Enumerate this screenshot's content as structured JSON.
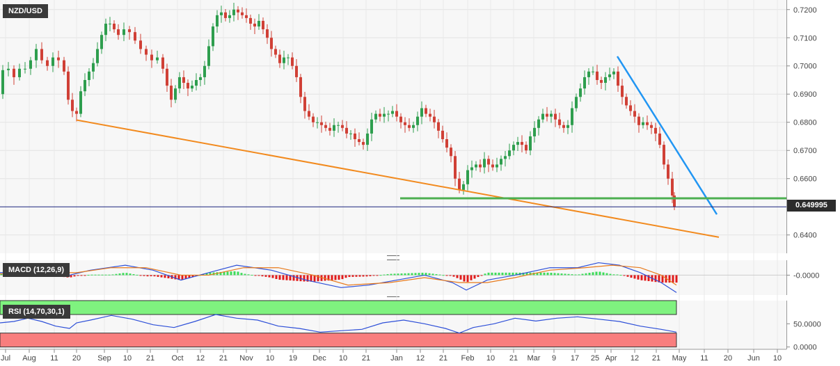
{
  "chart_data": {
    "type": "candlestick",
    "title": "NZD/USD",
    "last_price": "0.649995",
    "y_axis_labels": [
      "0.7200",
      "0.7100",
      "0.7000",
      "0.6900",
      "0.6800",
      "0.6700",
      "0.6600",
      "0.6400"
    ],
    "y_axis_values": [
      0.72,
      0.71,
      0.7,
      0.69,
      0.68,
      0.67,
      0.66,
      0.64
    ],
    "ylim": [
      0.6335,
      0.7234
    ],
    "x_axis_labels": [
      "Jul",
      "Aug",
      "11",
      "20",
      "Sep",
      "10",
      "21",
      "Oct",
      "12",
      "21",
      "Nov",
      "10",
      "19",
      "Dec",
      "10",
      "21",
      "Jan",
      "12",
      "21",
      "Feb",
      "10",
      "21",
      "Mar",
      "9",
      "17",
      "25",
      "Apr",
      "12",
      "21",
      "May",
      "11",
      "20",
      "Jun",
      "10"
    ],
    "price_path": [
      [
        0,
        0.69
      ],
      [
        6,
        0.6985
      ],
      [
        14,
        0.699
      ],
      [
        22,
        0.696
      ],
      [
        30,
        0.699
      ],
      [
        38,
        0.699
      ],
      [
        46,
        0.702
      ],
      [
        54,
        0.706
      ],
      [
        62,
        0.702
      ],
      [
        70,
        0.7
      ],
      [
        78,
        0.703
      ],
      [
        86,
        0.702
      ],
      [
        94,
        0.698
      ],
      [
        100,
        0.688
      ],
      [
        106,
        0.684
      ],
      [
        112,
        0.683
      ],
      [
        118,
        0.691
      ],
      [
        124,
        0.695
      ],
      [
        130,
        0.698
      ],
      [
        136,
        0.701
      ],
      [
        142,
        0.706
      ],
      [
        148,
        0.711
      ],
      [
        154,
        0.715
      ],
      [
        160,
        0.715
      ],
      [
        166,
        0.713
      ],
      [
        172,
        0.711
      ],
      [
        180,
        0.713
      ],
      [
        188,
        0.712
      ],
      [
        196,
        0.709
      ],
      [
        204,
        0.706
      ],
      [
        212,
        0.704
      ],
      [
        220,
        0.702
      ],
      [
        228,
        0.703
      ],
      [
        236,
        0.699
      ],
      [
        242,
        0.693
      ],
      [
        248,
        0.688
      ],
      [
        254,
        0.692
      ],
      [
        260,
        0.696
      ],
      [
        266,
        0.694
      ],
      [
        272,
        0.692
      ],
      [
        278,
        0.693
      ],
      [
        284,
        0.695
      ],
      [
        290,
        0.696
      ],
      [
        296,
        0.7
      ],
      [
        302,
        0.707
      ],
      [
        308,
        0.714
      ],
      [
        314,
        0.718
      ],
      [
        320,
        0.719
      ],
      [
        326,
        0.717
      ],
      [
        332,
        0.718
      ],
      [
        338,
        0.72
      ],
      [
        344,
        0.719
      ],
      [
        350,
        0.718
      ],
      [
        356,
        0.717
      ],
      [
        362,
        0.715
      ],
      [
        368,
        0.714
      ],
      [
        374,
        0.716
      ],
      [
        380,
        0.713
      ],
      [
        386,
        0.71
      ],
      [
        392,
        0.706
      ],
      [
        398,
        0.704
      ],
      [
        404,
        0.701
      ],
      [
        410,
        0.703
      ],
      [
        416,
        0.703
      ],
      [
        422,
        0.7
      ],
      [
        428,
        0.696
      ],
      [
        434,
        0.689
      ],
      [
        440,
        0.684
      ],
      [
        446,
        0.682
      ],
      [
        452,
        0.68
      ],
      [
        458,
        0.68
      ],
      [
        464,
        0.679
      ],
      [
        470,
        0.678
      ],
      [
        476,
        0.677
      ],
      [
        482,
        0.679
      ],
      [
        488,
        0.679
      ],
      [
        494,
        0.678
      ],
      [
        500,
        0.676
      ],
      [
        506,
        0.676
      ],
      [
        512,
        0.674
      ],
      [
        518,
        0.673
      ],
      [
        524,
        0.672
      ],
      [
        530,
        0.676
      ],
      [
        536,
        0.681
      ],
      [
        542,
        0.683
      ],
      [
        548,
        0.682
      ],
      [
        554,
        0.683
      ],
      [
        560,
        0.683
      ],
      [
        566,
        0.684
      ],
      [
        572,
        0.682
      ],
      [
        578,
        0.68
      ],
      [
        584,
        0.679
      ],
      [
        590,
        0.678
      ],
      [
        596,
        0.679
      ],
      [
        602,
        0.682
      ],
      [
        608,
        0.685
      ],
      [
        614,
        0.683
      ],
      [
        620,
        0.682
      ],
      [
        626,
        0.68
      ],
      [
        632,
        0.677
      ],
      [
        638,
        0.674
      ],
      [
        644,
        0.671
      ],
      [
        650,
        0.668
      ],
      [
        656,
        0.66
      ],
      [
        662,
        0.656
      ],
      [
        668,
        0.658
      ],
      [
        674,
        0.663
      ],
      [
        680,
        0.664
      ],
      [
        686,
        0.665
      ],
      [
        692,
        0.664
      ],
      [
        698,
        0.667
      ],
      [
        704,
        0.665
      ],
      [
        710,
        0.664
      ],
      [
        716,
        0.665
      ],
      [
        722,
        0.667
      ],
      [
        728,
        0.668
      ],
      [
        734,
        0.67
      ],
      [
        740,
        0.672
      ],
      [
        746,
        0.673
      ],
      [
        752,
        0.672
      ],
      [
        758,
        0.67
      ],
      [
        764,
        0.675
      ],
      [
        770,
        0.678
      ],
      [
        776,
        0.681
      ],
      [
        782,
        0.683
      ],
      [
        788,
        0.682
      ],
      [
        794,
        0.683
      ],
      [
        800,
        0.681
      ],
      [
        806,
        0.679
      ],
      [
        812,
        0.678
      ],
      [
        818,
        0.679
      ],
      [
        824,
        0.685
      ],
      [
        830,
        0.689
      ],
      [
        836,
        0.692
      ],
      [
        842,
        0.696
      ],
      [
        848,
        0.698
      ],
      [
        854,
        0.698
      ],
      [
        860,
        0.695
      ],
      [
        866,
        0.694
      ],
      [
        872,
        0.696
      ],
      [
        878,
        0.697
      ],
      [
        884,
        0.698
      ],
      [
        890,
        0.693
      ],
      [
        896,
        0.689
      ],
      [
        902,
        0.686
      ],
      [
        908,
        0.684
      ],
      [
        914,
        0.682
      ],
      [
        920,
        0.679
      ],
      [
        926,
        0.68
      ],
      [
        932,
        0.679
      ],
      [
        938,
        0.678
      ],
      [
        944,
        0.676
      ],
      [
        950,
        0.672
      ],
      [
        956,
        0.665
      ],
      [
        962,
        0.66
      ],
      [
        968,
        0.654
      ],
      [
        971,
        0.65
      ]
    ],
    "support_line": [
      [
        575,
        0.653
      ],
      [
        1130,
        0.653
      ]
    ],
    "falling_trendline": [
      [
        110,
        0.6808
      ],
      [
        1033,
        0.6392
      ]
    ],
    "resistance_trendline": [
      [
        887,
        0.7034
      ],
      [
        1030,
        0.6473
      ]
    ],
    "macd": {
      "label": "MACD (12,26,9)",
      "axis_label": "-0.0000",
      "ylim": [
        -0.008,
        0.006
      ],
      "line": [
        [
          0,
          0.001
        ],
        [
          50,
          0.0015
        ],
        [
          100,
          0.0
        ],
        [
          130,
          0.002
        ],
        [
          180,
          0.004
        ],
        [
          220,
          0.002
        ],
        [
          260,
          -0.002
        ],
        [
          300,
          0.001
        ],
        [
          340,
          0.004
        ],
        [
          390,
          0.002
        ],
        [
          440,
          -0.002
        ],
        [
          490,
          -0.005
        ],
        [
          530,
          -0.004
        ],
        [
          570,
          -0.002
        ],
        [
          610,
          0.0
        ],
        [
          650,
          -0.003
        ],
        [
          670,
          -0.006
        ],
        [
          700,
          -0.002
        ],
        [
          740,
          0.0
        ],
        [
          790,
          0.003
        ],
        [
          830,
          0.003
        ],
        [
          860,
          0.005
        ],
        [
          890,
          0.004
        ],
        [
          920,
          0.001
        ],
        [
          950,
          -0.003
        ],
        [
          972,
          -0.007
        ]
      ],
      "signal": [
        [
          0,
          0.0005
        ],
        [
          60,
          0.001
        ],
        [
          110,
          0.001
        ],
        [
          160,
          0.003
        ],
        [
          210,
          0.003
        ],
        [
          260,
          0.0
        ],
        [
          300,
          0.0
        ],
        [
          350,
          0.003
        ],
        [
          400,
          0.003
        ],
        [
          450,
          0.0
        ],
        [
          500,
          -0.004
        ],
        [
          560,
          -0.003
        ],
        [
          610,
          -0.001
        ],
        [
          660,
          -0.003
        ],
        [
          700,
          -0.003
        ],
        [
          740,
          -0.001
        ],
        [
          790,
          0.002
        ],
        [
          840,
          0.003
        ],
        [
          880,
          0.004
        ],
        [
          920,
          0.003
        ],
        [
          950,
          0.0
        ],
        [
          972,
          -0.004
        ]
      ]
    },
    "rsi": {
      "label": "RSI (14,70,30,1)",
      "axis_labels": [
        "50.0000",
        "0.0000"
      ],
      "axis_values": [
        50,
        0
      ],
      "ylim": [
        -5,
        100
      ],
      "overbought": 70,
      "oversold": 30,
      "overbought_color": "#7ff27f",
      "oversold_color": "#f87e7e",
      "series": [
        [
          0,
          52
        ],
        [
          20,
          55
        ],
        [
          40,
          62
        ],
        [
          60,
          55
        ],
        [
          80,
          45
        ],
        [
          100,
          40
        ],
        [
          110,
          52
        ],
        [
          130,
          58
        ],
        [
          160,
          68
        ],
        [
          190,
          60
        ],
        [
          220,
          48
        ],
        [
          250,
          42
        ],
        [
          280,
          55
        ],
        [
          310,
          70
        ],
        [
          340,
          62
        ],
        [
          370,
          58
        ],
        [
          400,
          45
        ],
        [
          430,
          40
        ],
        [
          460,
          32
        ],
        [
          490,
          35
        ],
        [
          520,
          38
        ],
        [
          550,
          52
        ],
        [
          580,
          58
        ],
        [
          610,
          50
        ],
        [
          640,
          40
        ],
        [
          660,
          30
        ],
        [
          680,
          42
        ],
        [
          710,
          50
        ],
        [
          740,
          62
        ],
        [
          770,
          56
        ],
        [
          800,
          62
        ],
        [
          830,
          65
        ],
        [
          860,
          60
        ],
        [
          890,
          55
        ],
        [
          920,
          45
        ],
        [
          950,
          38
        ],
        [
          972,
          32
        ]
      ]
    },
    "colors": {
      "up": "#2e9e4e",
      "down": "#d04036",
      "support": "#4caf50",
      "falling_trend": "#f28a1e",
      "resistance_trend": "#2196f3",
      "macd_line": "#2d4fd8",
      "macd_signal": "#e87a1b",
      "price_line": "#1a237e"
    }
  }
}
